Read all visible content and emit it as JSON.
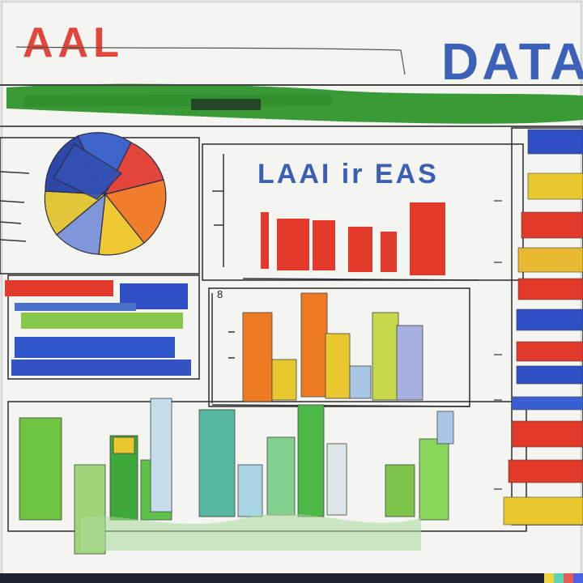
{
  "header": {
    "left_title": "AAL",
    "right_title": "DATA"
  },
  "middle_panel": {
    "title": "LAAI ir EAS"
  },
  "axis": {
    "tick_label": "8"
  },
  "colors": {
    "paper": "#f4f4f1",
    "frame": "#2a2a2e",
    "red": "#e23a2a",
    "blue": "#2f4fc4",
    "navy": "#23377f",
    "green": "#3c9a35",
    "light_green": "#86c94d",
    "yellow": "#e8c82e",
    "orange": "#ee7a24",
    "sky": "#a9c6e4",
    "lavender": "#a6b0e0",
    "teal": "#56b8a0"
  }
}
